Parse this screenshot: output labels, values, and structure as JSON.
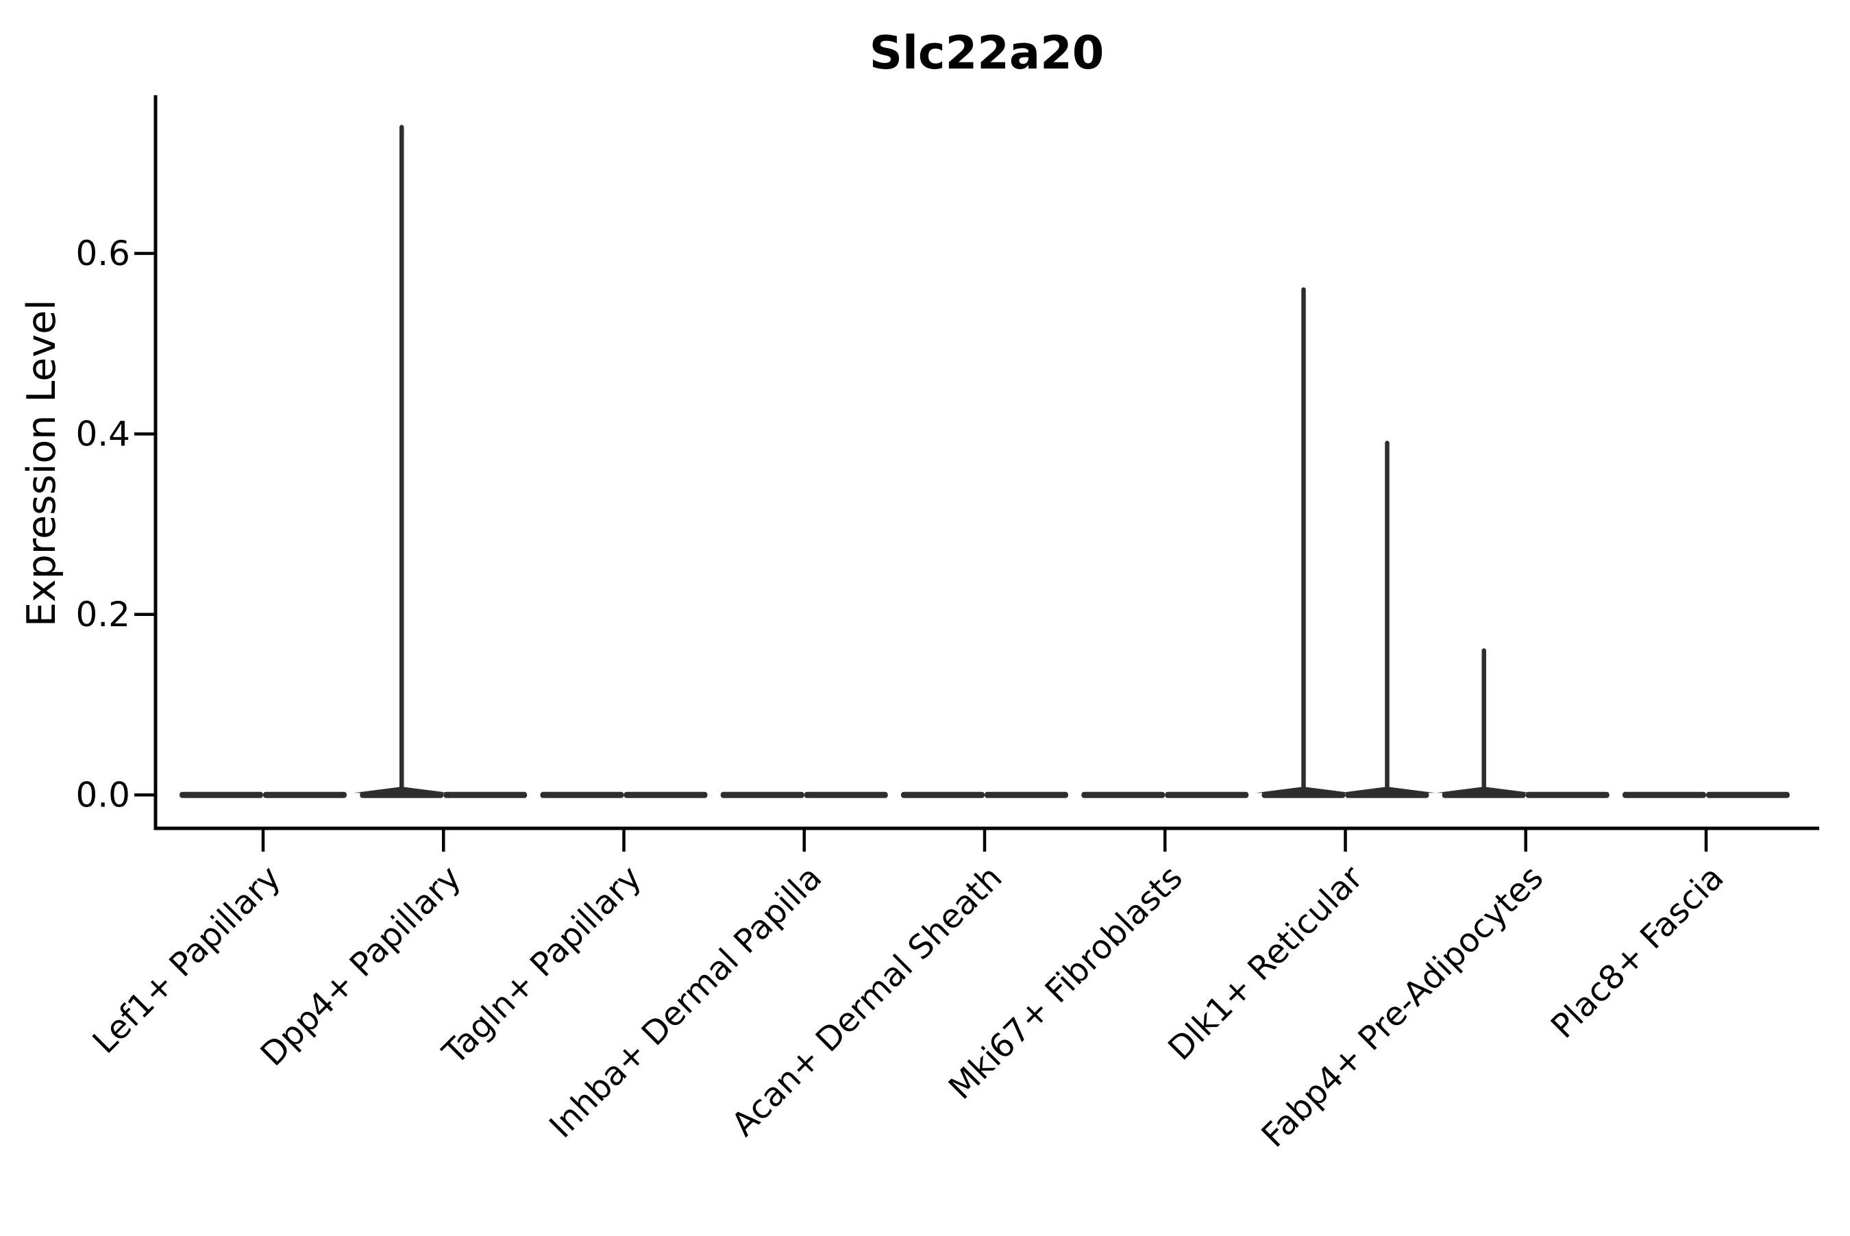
{
  "title": "Slc22a20",
  "ylabel": "Expression Level",
  "chart_data": {
    "type": "violin",
    "title": "Slc22a20",
    "xlabel": "",
    "ylabel": "Expression Level",
    "ylim": [
      -0.037,
      0.773
    ],
    "ytick_values": [
      0.0,
      0.2,
      0.4,
      0.6
    ],
    "ytick_labels": [
      "0.0",
      "0.2",
      "0.4",
      "0.6"
    ],
    "grid": false,
    "legend": "none",
    "background_color": "#ffffff",
    "axis_color": "#000000",
    "violin_color": "#2e2e2e",
    "violins_per_category": 2,
    "categories": [
      "Lef1+ Papillary",
      "Dpp4+ Papillary",
      "Tagln+ Papillary",
      "Inhba+ Dermal Papilla",
      "Acan+ Dermal Sheath",
      "Mki67+ Fibroblasts",
      "Dlk1+ Reticular",
      "Fabp4+ Pre-Adipocytes",
      "Plac8+ Fascia"
    ],
    "violins": [
      {
        "category": "Lef1+ Papillary",
        "position": "left",
        "max_expression": 0
      },
      {
        "category": "Lef1+ Papillary",
        "position": "right",
        "max_expression": 0
      },
      {
        "category": "Dpp4+ Papillary",
        "position": "left",
        "max_expression": 0.74
      },
      {
        "category": "Dpp4+ Papillary",
        "position": "right",
        "max_expression": 0
      },
      {
        "category": "Tagln+ Papillary",
        "position": "left",
        "max_expression": 0
      },
      {
        "category": "Tagln+ Papillary",
        "position": "right",
        "max_expression": 0
      },
      {
        "category": "Inhba+ Dermal Papilla",
        "position": "left",
        "max_expression": 0
      },
      {
        "category": "Inhba+ Dermal Papilla",
        "position": "right",
        "max_expression": 0
      },
      {
        "category": "Acan+ Dermal Sheath",
        "position": "left",
        "max_expression": 0
      },
      {
        "category": "Acan+ Dermal Sheath",
        "position": "right",
        "max_expression": 0
      },
      {
        "category": "Mki67+ Fibroblasts",
        "position": "left",
        "max_expression": 0
      },
      {
        "category": "Mki67+ Fibroblasts",
        "position": "right",
        "max_expression": 0
      },
      {
        "category": "Dlk1+ Reticular",
        "position": "left",
        "max_expression": 0.56
      },
      {
        "category": "Dlk1+ Reticular",
        "position": "right",
        "max_expression": 0.39
      },
      {
        "category": "Fabp4+ Pre-Adipocytes",
        "position": "left",
        "max_expression": 0.16
      },
      {
        "category": "Fabp4+ Pre-Adipocytes",
        "position": "right",
        "max_expression": 0
      },
      {
        "category": "Plac8+ Fascia",
        "position": "left",
        "max_expression": 0
      },
      {
        "category": "Plac8+ Fascia",
        "position": "right",
        "max_expression": 0
      }
    ]
  }
}
